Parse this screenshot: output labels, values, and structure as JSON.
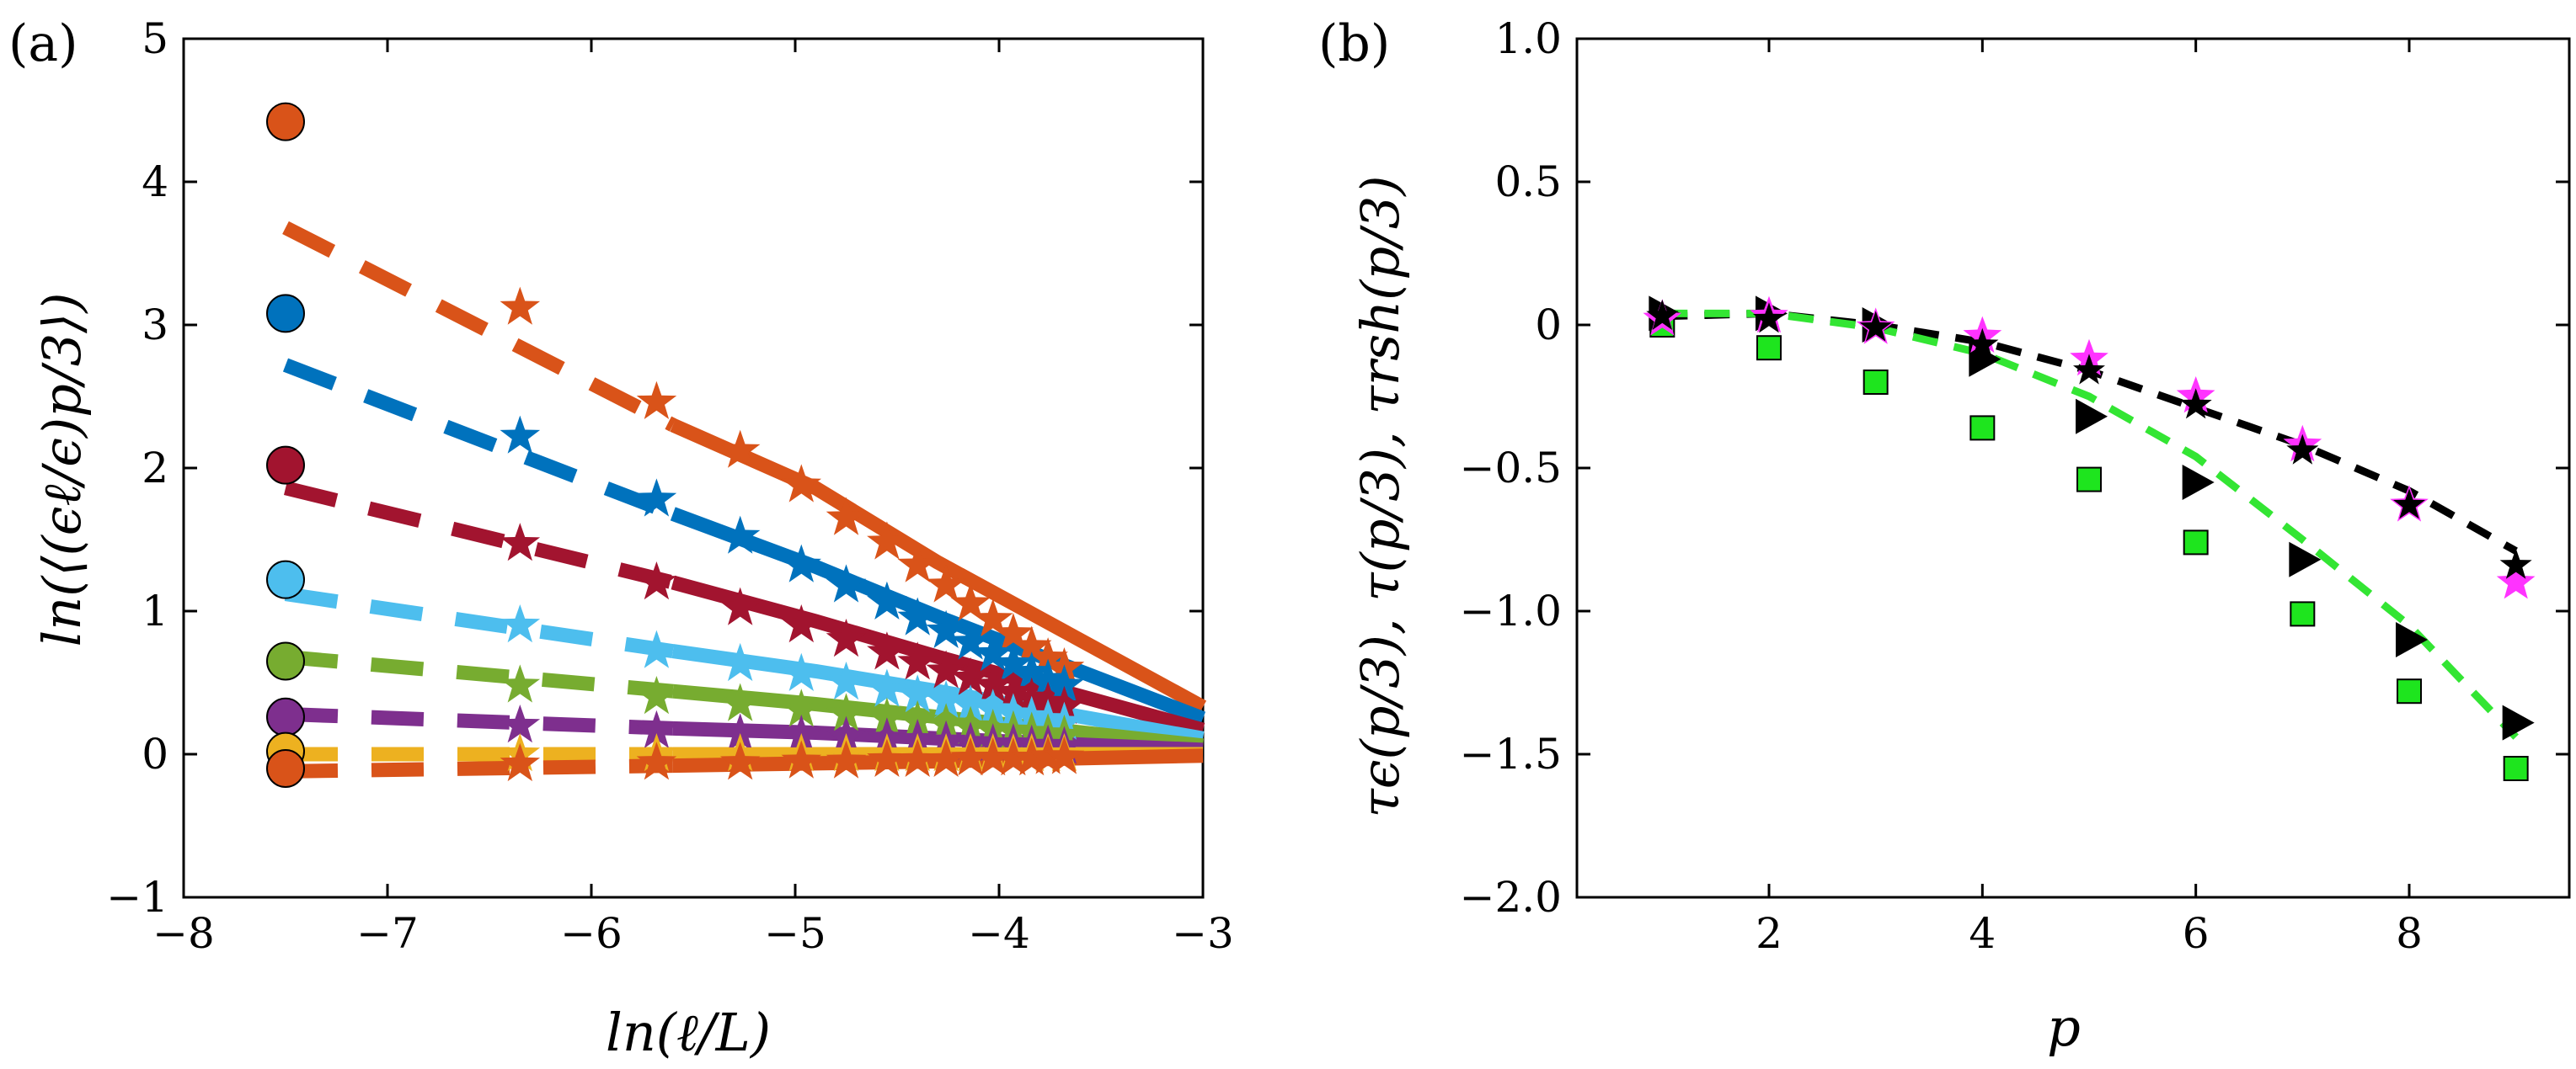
{
  "chart_data": [
    {
      "panel_label": "(a)",
      "type": "scatter",
      "xlabel": "ln(ℓ/L)",
      "ylabel": "ln(⟨(ϵℓ/ϵ)p/3⟩)",
      "xlim": [
        -8,
        -3
      ],
      "ylim": [
        -1,
        5
      ],
      "xticks": [
        -8,
        -7,
        -6,
        -5,
        -4,
        -3
      ],
      "yticks": [
        -1,
        0,
        1,
        2,
        3,
        4,
        5
      ],
      "xtick_labels": [
        "−8",
        "−7",
        "−6",
        "−5",
        "−4",
        "−3"
      ],
      "ytick_labels": [
        "−1",
        "0",
        "1",
        "2",
        "3",
        "4",
        "5"
      ],
      "grid": false,
      "star_x": [
        -6.35,
        -5.68,
        -5.27,
        -4.97,
        -4.75,
        -4.55,
        -4.4,
        -4.26,
        -4.14,
        -4.03,
        -3.93,
        -3.84,
        -3.76,
        -3.68
      ],
      "series": [
        {
          "color": "#d95319",
          "circle": [
            -7.5,
            4.42
          ],
          "dash": [
            [
              -7.5,
              3.68
            ],
            [
              -5.6,
              2.3
            ]
          ],
          "solid": [
            [
              -5.6,
              2.3
            ],
            [
              -4.9,
              1.86
            ],
            [
              -4.3,
              1.34
            ],
            [
              -3.0,
              0.33
            ]
          ],
          "stars": [
            3.12,
            2.46,
            2.12,
            1.88,
            1.65,
            1.48,
            1.32,
            1.18,
            1.05,
            0.94,
            0.84,
            0.75,
            0.67,
            0.6
          ]
        },
        {
          "color": "#0072bd",
          "circle": [
            -7.5,
            3.08
          ],
          "dash": [
            [
              -7.5,
              2.72
            ],
            [
              -5.6,
              1.68
            ]
          ],
          "solid": [
            [
              -5.6,
              1.68
            ],
            [
              -4.9,
              1.31
            ],
            [
              -4.3,
              0.96
            ],
            [
              -3.0,
              0.25
            ]
          ],
          "stars": [
            2.22,
            1.78,
            1.52,
            1.32,
            1.18,
            1.06,
            0.95,
            0.86,
            0.78,
            0.7,
            0.63,
            0.57,
            0.52,
            0.48
          ]
        },
        {
          "color": "#a2142f",
          "circle": [
            -7.5,
            2.02
          ],
          "dash": [
            [
              -7.5,
              1.86
            ],
            [
              -5.6,
              1.2
            ]
          ],
          "solid": [
            [
              -5.6,
              1.2
            ],
            [
              -4.9,
              0.93
            ],
            [
              -4.3,
              0.68
            ],
            [
              -3.0,
              0.17
            ]
          ],
          "stars": [
            1.47,
            1.2,
            1.02,
            0.9,
            0.8,
            0.71,
            0.64,
            0.58,
            0.53,
            0.48,
            0.43,
            0.39,
            0.36,
            0.33
          ]
        },
        {
          "color": "#4dbeee",
          "circle": [
            -7.5,
            1.22
          ],
          "dash": [
            [
              -7.5,
              1.12
            ],
            [
              -5.6,
              0.72
            ]
          ],
          "solid": [
            [
              -5.6,
              0.72
            ],
            [
              -4.9,
              0.58
            ],
            [
              -4.3,
              0.44
            ],
            [
              -3.0,
              0.11
            ]
          ],
          "stars": [
            0.9,
            0.72,
            0.63,
            0.56,
            0.5,
            0.45,
            0.41,
            0.37,
            0.34,
            0.31,
            0.28,
            0.26,
            0.24,
            0.22
          ]
        },
        {
          "color": "#77ac30",
          "circle": [
            -7.5,
            0.65
          ],
          "dash": [
            [
              -7.5,
              0.68
            ],
            [
              -5.6,
              0.44
            ]
          ],
          "solid": [
            [
              -5.6,
              0.44
            ],
            [
              -4.9,
              0.35
            ],
            [
              -4.3,
              0.26
            ],
            [
              -3.0,
              0.06
            ]
          ],
          "stars": [
            0.48,
            0.4,
            0.35,
            0.31,
            0.28,
            0.25,
            0.23,
            0.21,
            0.19,
            0.17,
            0.16,
            0.15,
            0.14,
            0.13
          ]
        },
        {
          "color": "#7e2f8e",
          "circle": [
            -7.5,
            0.26
          ],
          "dash": [
            [
              -7.5,
              0.28
            ],
            [
              -5.6,
              0.18
            ]
          ],
          "solid": [
            [
              -5.6,
              0.18
            ],
            [
              -4.9,
              0.15
            ],
            [
              -4.3,
              0.11
            ],
            [
              -3.0,
              0.03
            ]
          ],
          "stars": [
            0.2,
            0.16,
            0.14,
            0.13,
            0.12,
            0.11,
            0.1,
            0.09,
            0.08,
            0.07,
            0.07,
            0.06,
            0.06,
            0.05
          ]
        },
        {
          "color": "#edb120",
          "circle": [
            -7.5,
            0.02
          ],
          "dash": [
            [
              -7.5,
              0.0
            ],
            [
              -5.6,
              0.0
            ]
          ],
          "solid": [
            [
              -5.6,
              0.0
            ],
            [
              -4.3,
              0.0
            ],
            [
              -3.0,
              0.0
            ]
          ],
          "stars": [
            0.0,
            0.0,
            0.0,
            0.0,
            0.0,
            0.0,
            0.0,
            0.0,
            0.0,
            0.0,
            0.0,
            0.0,
            0.0,
            0.0
          ]
        },
        {
          "color": "#d95319",
          "circle": [
            -7.5,
            -0.1
          ],
          "dash": [
            [
              -7.5,
              -0.12
            ],
            [
              -5.6,
              -0.08
            ]
          ],
          "solid": [
            [
              -5.6,
              -0.08
            ],
            [
              -4.3,
              -0.05
            ],
            [
              -3.0,
              -0.01
            ]
          ],
          "stars": [
            -0.07,
            -0.06,
            -0.06,
            -0.05,
            -0.05,
            -0.04,
            -0.04,
            -0.04,
            -0.03,
            -0.03,
            -0.03,
            -0.03,
            -0.02,
            -0.02
          ]
        }
      ]
    },
    {
      "panel_label": "(b)",
      "type": "scatter",
      "xlabel": "p",
      "ylabel": "τϵ(p/3), τ(p/3), τrsh(p/3)",
      "xlim": [
        0.2,
        9.5
      ],
      "ylim": [
        -2.0,
        1.0
      ],
      "xticks": [
        2,
        4,
        6,
        8
      ],
      "yticks": [
        -2.0,
        -1.5,
        -1.0,
        -0.5,
        0,
        0.5,
        1.0
      ],
      "xtick_labels": [
        "2",
        "4",
        "6",
        "8"
      ],
      "ytick_labels": [
        "−2.0",
        "−1.5",
        "−1.0",
        "−0.5",
        "0",
        "0.5",
        "1.0"
      ],
      "grid": false,
      "x": [
        1,
        2,
        3,
        4,
        5,
        6,
        7,
        8,
        9
      ],
      "series": [
        {
          "marker": "square",
          "color": "#1ee51e",
          "values": [
            0.0,
            -0.08,
            -0.2,
            -0.36,
            -0.54,
            -0.76,
            -1.01,
            -1.28,
            -1.55
          ]
        },
        {
          "marker": "triangle-right",
          "color": "#000000",
          "values": [
            0.04,
            0.04,
            0.0,
            -0.12,
            -0.32,
            -0.55,
            -0.82,
            -1.1,
            -1.39
          ]
        },
        {
          "marker": "star",
          "color": "#ff33ff",
          "values": [
            0.02,
            0.03,
            -0.01,
            -0.04,
            -0.12,
            -0.25,
            -0.42,
            -0.63,
            -0.9
          ]
        },
        {
          "marker": "star",
          "color": "#000000",
          "values": [
            0.03,
            0.02,
            -0.01,
            -0.07,
            -0.16,
            -0.28,
            -0.44,
            -0.63,
            -0.84
          ]
        },
        {
          "line": "dashed",
          "color": "#000000",
          "x": [
            1,
            2,
            3,
            4,
            5,
            6,
            7,
            8,
            9
          ],
          "values": [
            0.03,
            0.04,
            0.0,
            -0.06,
            -0.16,
            -0.29,
            -0.42,
            -0.58,
            -0.79
          ]
        },
        {
          "line": "dashed",
          "color": "#33e533",
          "x": [
            1,
            2,
            3,
            4,
            5,
            6,
            7,
            8,
            9
          ],
          "values": [
            0.04,
            0.04,
            -0.01,
            -0.1,
            -0.25,
            -0.46,
            -0.75,
            -1.05,
            -1.44
          ]
        }
      ]
    }
  ]
}
